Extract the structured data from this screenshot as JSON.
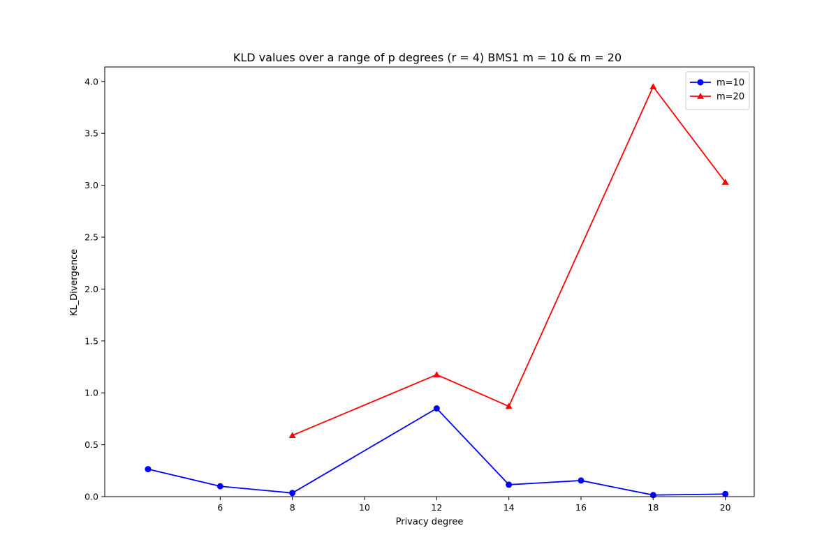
{
  "chart_data": {
    "type": "line",
    "title": "KLD values over a range of p degrees (r = 4) BMS1 m = 10 & m = 20",
    "xlabel": "Privacy degree",
    "ylabel": "KL_Divergence",
    "xlim": [
      2.8,
      20.8
    ],
    "ylim": [
      0,
      4.14
    ],
    "xticks": [
      6,
      8,
      10,
      12,
      14,
      16,
      18,
      20
    ],
    "yticks": [
      0.0,
      0.5,
      1.0,
      1.5,
      2.0,
      2.5,
      3.0,
      3.5,
      4.0
    ],
    "grid": false,
    "legend_position": "top-right",
    "series": [
      {
        "name": "m=10",
        "color": "#0000ff",
        "marker": "circle",
        "x": [
          4,
          6,
          8,
          12,
          14,
          16,
          18,
          20
        ],
        "y": [
          0.265,
          0.1,
          0.035,
          0.85,
          0.115,
          0.155,
          0.015,
          0.025
        ]
      },
      {
        "name": "m=20",
        "color": "#ff0000",
        "marker": "triangle",
        "x": [
          8,
          12,
          14,
          18,
          20
        ],
        "y": [
          0.59,
          1.175,
          0.87,
          3.95,
          3.03
        ]
      }
    ]
  }
}
